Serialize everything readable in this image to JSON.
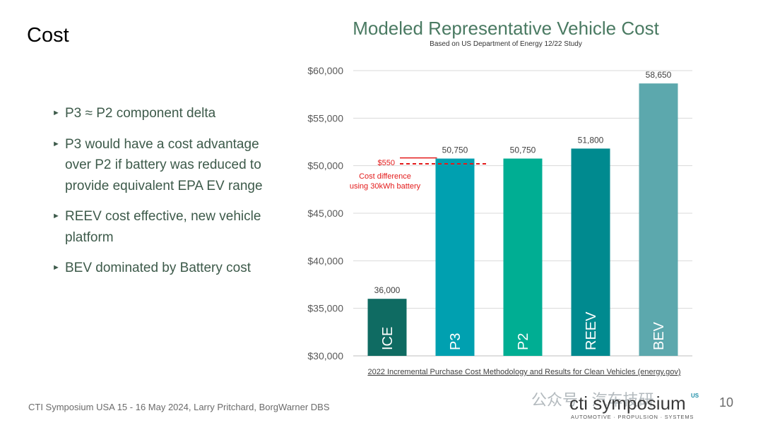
{
  "slide": {
    "title": "Cost",
    "bullets": [
      "P3 ≈ P2  component delta",
      "P3 would have a cost advantage over P2 if battery was reduced to provide equivalent EPA EV range",
      "REEV cost effective, new vehicle platform",
      "BEV dominated by Battery cost"
    ],
    "bullet_marker": "►",
    "footer": "CTI Symposium USA 15 - 16 May 2024, Larry Pritchard, BorgWarner DBS",
    "watermark": "公众号 · 汽车技研",
    "logo": {
      "name": "cti symposium",
      "superscript": "US",
      "tagline": "AUTOMOTIVE · PROPULSION · SYSTEMS",
      "page": "10"
    }
  },
  "chart_data": {
    "type": "bar",
    "title": "Modeled Representative Vehicle Cost",
    "subtitle": "Based on US Department of Energy 12/22 Study",
    "categories": [
      "ICE",
      "P3",
      "P2",
      "REEV",
      "BEV"
    ],
    "values": [
      36000,
      50750,
      50750,
      51800,
      58650
    ],
    "value_labels": [
      "36,000",
      "50,750",
      "50,750",
      "51,800",
      "58,650"
    ],
    "colors": [
      "#0f6b62",
      "#00a0b0",
      "#00ae93",
      "#008a8f",
      "#5ca8ad"
    ],
    "ylim": [
      30000,
      60000
    ],
    "y_ticks": [
      30000,
      35000,
      40000,
      45000,
      50000,
      55000,
      60000
    ],
    "y_tick_labels": [
      "$30,000",
      "$35,000",
      "$40,000",
      "$45,000",
      "$50,000",
      "$55,000",
      "$60,000"
    ],
    "grid": true,
    "annotation": {
      "amount": "$550",
      "line1": "Cost difference",
      "line2": "using 30kWh battery",
      "dashed_value": 50200,
      "solid_value": 50750,
      "color": "#e31b1b"
    },
    "source": "2022 Incremental Purchase Cost Methodology and Results for Clean Vehicles (energy.gov)"
  }
}
